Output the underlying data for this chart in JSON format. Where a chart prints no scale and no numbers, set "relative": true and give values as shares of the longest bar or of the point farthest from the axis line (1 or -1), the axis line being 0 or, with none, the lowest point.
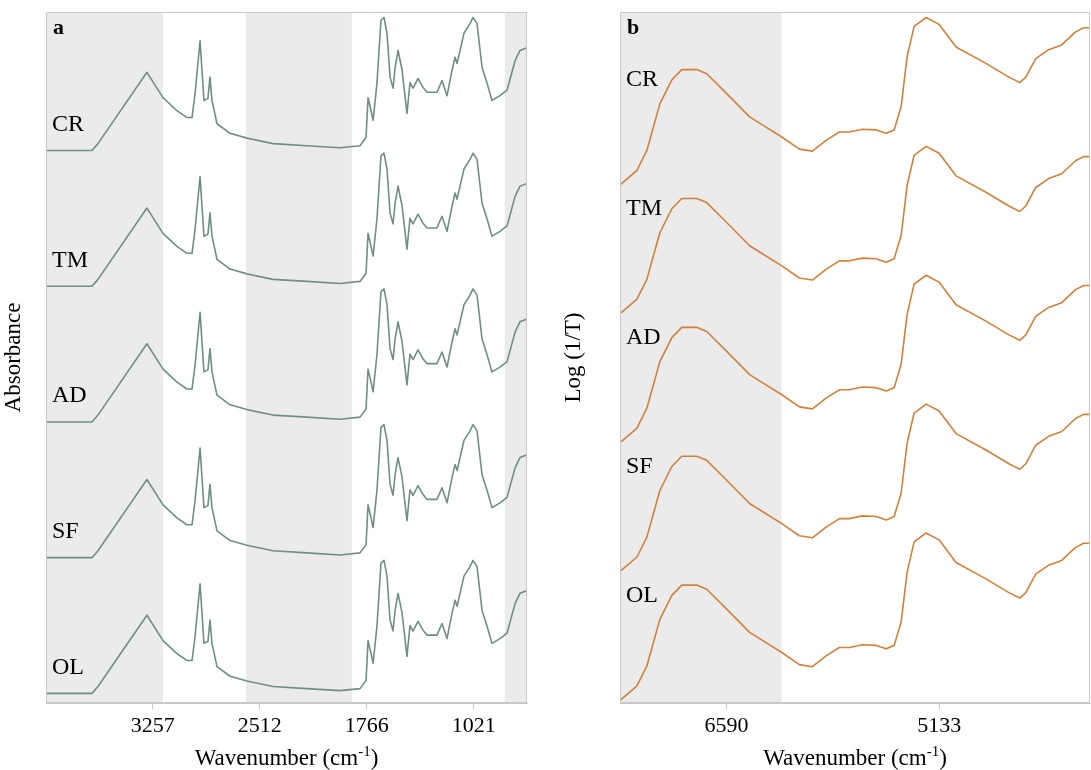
{
  "chart_data": [
    {
      "type": "line",
      "title": "a",
      "xlabel": "Wavenumber (cm$^{-1}$)",
      "ylabel": "Absorbance",
      "relative": true,
      "marker": "none",
      "x": [
        4000,
        3680,
        3638,
        3297,
        3185,
        3088,
        3018,
        2983,
        2962,
        2927,
        2900,
        2872,
        2858,
        2844,
        2809,
        2718,
        2600,
        2419,
        2182,
        1952,
        1813,
        1771,
        1757,
        1736,
        1722,
        1695,
        1667,
        1646,
        1625,
        1604,
        1583,
        1569,
        1548,
        1520,
        1486,
        1465,
        1444,
        1409,
        1374,
        1346,
        1277,
        1242,
        1207,
        1172,
        1151,
        1137,
        1089,
        1047,
        1026,
        998,
        963,
        928,
        894,
        838,
        789,
        733,
        699,
        650
      ],
      "xlim": [
        4000,
        650
      ],
      "xticks": [
        3257,
        2512,
        1766,
        1021
      ],
      "bands": [
        {
          "axis": "x",
          "from": 4000,
          "to": 3185,
          "color": "#ebebeb"
        },
        {
          "axis": "x",
          "from": 2608,
          "to": 1870,
          "color": "#ebebeb"
        },
        {
          "axis": "x",
          "from": 805,
          "to": 650,
          "color": "#ebebeb"
        }
      ],
      "series": [
        {
          "name": "CR",
          "color": "#6f8f84",
          "values": [
            0.806,
            0.806,
            0.816,
            0.92,
            0.883,
            0.864,
            0.854,
            0.854,
            0.889,
            0.966,
            0.879,
            0.882,
            0.913,
            0.879,
            0.845,
            0.831,
            0.824,
            0.816,
            0.813,
            0.81,
            0.813,
            0.825,
            0.883,
            0.864,
            0.85,
            0.904,
            0.996,
            1,
            0.977,
            0.913,
            0.897,
            0.927,
            0.952,
            0.923,
            0.86,
            0.905,
            0.897,
            0.911,
            0.898,
            0.891,
            0.891,
            0.908,
            0.886,
            0.923,
            0.942,
            0.933,
            0.977,
            0.991,
            1,
            0.991,
            0.927,
            0.904,
            0.879,
            0.886,
            0.894,
            0.937,
            0.952,
            0.956
          ]
        },
        {
          "name": "TM",
          "color": "#6f8f84",
          "values": [
            0.608,
            0.608,
            0.618,
            0.722,
            0.685,
            0.666,
            0.656,
            0.656,
            0.691,
            0.768,
            0.681,
            0.684,
            0.715,
            0.681,
            0.647,
            0.633,
            0.626,
            0.618,
            0.615,
            0.612,
            0.615,
            0.627,
            0.685,
            0.666,
            0.652,
            0.706,
            0.798,
            0.802,
            0.779,
            0.715,
            0.699,
            0.729,
            0.754,
            0.725,
            0.662,
            0.707,
            0.699,
            0.713,
            0.7,
            0.693,
            0.693,
            0.71,
            0.688,
            0.725,
            0.744,
            0.735,
            0.779,
            0.793,
            0.802,
            0.793,
            0.729,
            0.706,
            0.681,
            0.688,
            0.696,
            0.739,
            0.754,
            0.758
          ]
        },
        {
          "name": "AD",
          "color": "#6f8f84",
          "values": [
            0.41,
            0.41,
            0.42,
            0.524,
            0.487,
            0.468,
            0.458,
            0.458,
            0.493,
            0.57,
            0.483,
            0.486,
            0.517,
            0.483,
            0.449,
            0.435,
            0.428,
            0.42,
            0.417,
            0.414,
            0.417,
            0.429,
            0.487,
            0.468,
            0.454,
            0.508,
            0.6,
            0.604,
            0.581,
            0.517,
            0.501,
            0.531,
            0.556,
            0.527,
            0.464,
            0.509,
            0.501,
            0.515,
            0.502,
            0.495,
            0.495,
            0.512,
            0.49,
            0.527,
            0.546,
            0.537,
            0.581,
            0.595,
            0.604,
            0.595,
            0.531,
            0.508,
            0.483,
            0.49,
            0.498,
            0.541,
            0.556,
            0.56
          ]
        },
        {
          "name": "SF",
          "color": "#6f8f84",
          "values": [
            0.212,
            0.212,
            0.222,
            0.326,
            0.289,
            0.27,
            0.26,
            0.26,
            0.295,
            0.372,
            0.285,
            0.288,
            0.319,
            0.285,
            0.251,
            0.237,
            0.23,
            0.222,
            0.219,
            0.216,
            0.219,
            0.231,
            0.289,
            0.27,
            0.256,
            0.31,
            0.402,
            0.406,
            0.383,
            0.319,
            0.303,
            0.333,
            0.358,
            0.329,
            0.266,
            0.311,
            0.303,
            0.317,
            0.304,
            0.297,
            0.297,
            0.314,
            0.292,
            0.329,
            0.348,
            0.339,
            0.383,
            0.397,
            0.406,
            0.397,
            0.333,
            0.31,
            0.285,
            0.292,
            0.3,
            0.343,
            0.358,
            0.362
          ]
        },
        {
          "name": "OL",
          "color": "#6f8f84",
          "values": [
            0.014,
            0.014,
            0.024,
            0.128,
            0.091,
            0.072,
            0.062,
            0.062,
            0.097,
            0.174,
            0.087,
            0.09,
            0.121,
            0.087,
            0.053,
            0.039,
            0.032,
            0.024,
            0.021,
            0.018,
            0.021,
            0.033,
            0.091,
            0.072,
            0.058,
            0.112,
            0.204,
            0.208,
            0.185,
            0.121,
            0.105,
            0.135,
            0.16,
            0.131,
            0.068,
            0.113,
            0.105,
            0.119,
            0.106,
            0.099,
            0.099,
            0.116,
            0.094,
            0.131,
            0.15,
            0.141,
            0.185,
            0.199,
            0.208,
            0.199,
            0.135,
            0.112,
            0.087,
            0.094,
            0.102,
            0.145,
            0.16,
            0.164
          ]
        }
      ]
    },
    {
      "type": "line",
      "title": "b",
      "xlabel": "Wavenumber (cm$^{-1}$)",
      "ylabel": "Log (1/T)",
      "relative": true,
      "marker": "none",
      "x": [
        7313,
        7204,
        7136,
        7047,
        6965,
        6897,
        6794,
        6726,
        6589,
        6432,
        6214,
        6091,
        6002,
        5906,
        5817,
        5749,
        5660,
        5565,
        5496,
        5442,
        5394,
        5353,
        5305,
        5223,
        5134,
        5018,
        4813,
        4656,
        4581,
        4540,
        4472,
        4383,
        4294,
        4199,
        4144,
        4103
      ],
      "xlim": [
        7320,
        4100
      ],
      "xticks": [
        6590,
        5133
      ],
      "bands": [
        {
          "axis": "x",
          "from": 7320,
          "to": 6214,
          "color": "#ebebeb"
        }
      ],
      "series": [
        {
          "name": "CR",
          "color": "#d2803c",
          "values": [
            0.757,
            0.777,
            0.806,
            0.874,
            0.909,
            0.924,
            0.924,
            0.918,
            0.889,
            0.855,
            0.826,
            0.808,
            0.805,
            0.821,
            0.833,
            0.833,
            0.837,
            0.836,
            0.831,
            0.836,
            0.87,
            0.943,
            0.987,
            1,
            0.99,
            0.957,
            0.933,
            0.913,
            0.905,
            0.913,
            0.94,
            0.953,
            0.96,
            0.979,
            0.985,
            0.985
          ]
        },
        {
          "name": "TM",
          "color": "#d2803c",
          "values": [
            0.569,
            0.589,
            0.618,
            0.686,
            0.721,
            0.736,
            0.736,
            0.73,
            0.701,
            0.667,
            0.638,
            0.62,
            0.617,
            0.633,
            0.645,
            0.645,
            0.649,
            0.648,
            0.643,
            0.648,
            0.682,
            0.755,
            0.799,
            0.812,
            0.802,
            0.769,
            0.745,
            0.725,
            0.717,
            0.725,
            0.752,
            0.765,
            0.772,
            0.791,
            0.797,
            0.797
          ]
        },
        {
          "name": "AD",
          "color": "#d2803c",
          "values": [
            0.381,
            0.401,
            0.43,
            0.498,
            0.533,
            0.548,
            0.548,
            0.542,
            0.513,
            0.479,
            0.45,
            0.432,
            0.429,
            0.445,
            0.457,
            0.457,
            0.461,
            0.46,
            0.455,
            0.46,
            0.494,
            0.567,
            0.611,
            0.624,
            0.614,
            0.581,
            0.557,
            0.537,
            0.529,
            0.537,
            0.564,
            0.577,
            0.584,
            0.603,
            0.609,
            0.609
          ]
        },
        {
          "name": "SF",
          "color": "#d2803c",
          "values": [
            0.193,
            0.213,
            0.242,
            0.31,
            0.345,
            0.36,
            0.36,
            0.354,
            0.325,
            0.291,
            0.262,
            0.244,
            0.241,
            0.257,
            0.269,
            0.269,
            0.273,
            0.272,
            0.267,
            0.272,
            0.306,
            0.379,
            0.423,
            0.436,
            0.426,
            0.393,
            0.369,
            0.349,
            0.341,
            0.349,
            0.376,
            0.389,
            0.396,
            0.415,
            0.421,
            0.421
          ]
        },
        {
          "name": "OL",
          "color": "#d2803c",
          "values": [
            0.005,
            0.025,
            0.054,
            0.122,
            0.157,
            0.172,
            0.172,
            0.166,
            0.137,
            0.103,
            0.074,
            0.056,
            0.053,
            0.069,
            0.081,
            0.081,
            0.085,
            0.084,
            0.079,
            0.084,
            0.118,
            0.191,
            0.235,
            0.248,
            0.238,
            0.205,
            0.181,
            0.161,
            0.153,
            0.161,
            0.188,
            0.201,
            0.208,
            0.227,
            0.233,
            0.233
          ]
        }
      ]
    }
  ]
}
